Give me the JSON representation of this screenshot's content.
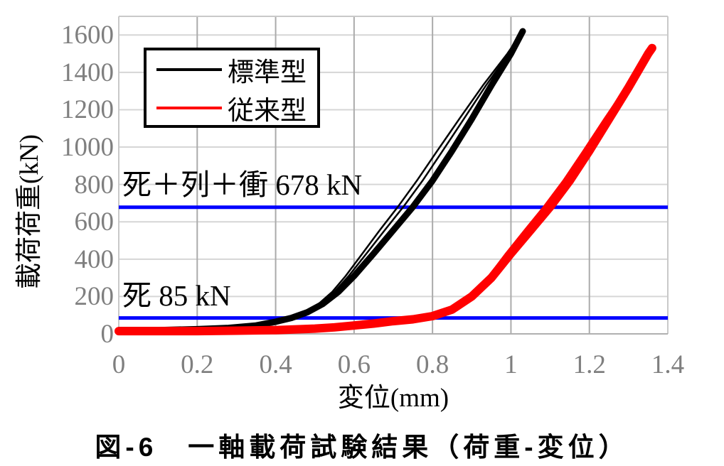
{
  "caption": "図-6　一軸載荷試験結果（荷重-変位）",
  "colors": {
    "grid_horizontal": "#d6d6d6",
    "grid_vertical": "#ababab",
    "plot_border": "#c9c9c9",
    "axis_line": "#b0b0b0",
    "tick_label": "#7f7f7f",
    "reference_line": "#0000ff",
    "series_standard": "#000000",
    "series_conventional": "#ff0000"
  },
  "chart_data": {
    "type": "line",
    "title": "",
    "xlabel": "変位(mm)",
    "ylabel": "載荷荷重(kN)",
    "xlim": [
      0,
      1.4
    ],
    "ylim": [
      0,
      1700
    ],
    "grid": true,
    "legend_position": "top-left-inside",
    "x_ticks": [
      0,
      0.2,
      0.4,
      0.6,
      0.8,
      1.0,
      1.2,
      1.4
    ],
    "x_tick_labels": [
      "0",
      "0.2",
      "0.4",
      "0.6",
      "0.8",
      "1",
      "1.2",
      "1.4"
    ],
    "y_ticks": [
      0,
      200,
      400,
      600,
      800,
      1000,
      1200,
      1400,
      1600
    ],
    "y_tick_labels": [
      "0",
      "200",
      "400",
      "600",
      "800",
      "1000",
      "1200",
      "1400",
      "1600"
    ],
    "reference_lines": [
      {
        "label": "死＋列＋衝 678 kN",
        "value": 678,
        "color": "#0000ff"
      },
      {
        "label": "死 85 kN",
        "value": 85,
        "color": "#0000ff"
      }
    ],
    "series": [
      {
        "name": "標準型",
        "color": "#000000",
        "x": [
          0,
          0.1,
          0.2,
          0.28,
          0.35,
          0.4,
          0.44,
          0.48,
          0.52,
          0.56,
          0.6,
          0.65,
          0.7,
          0.75,
          0.8,
          0.85,
          0.9,
          0.95,
          1.0,
          1.03
        ],
        "y": [
          20,
          20,
          25,
          32,
          45,
          65,
          85,
          115,
          160,
          225,
          310,
          430,
          555,
          680,
          820,
          980,
          1150,
          1330,
          1500,
          1620
        ]
      },
      {
        "name": "従来型",
        "color": "#ff0000",
        "x": [
          0,
          0.1,
          0.2,
          0.3,
          0.4,
          0.5,
          0.55,
          0.6,
          0.65,
          0.7,
          0.75,
          0.8,
          0.85,
          0.9,
          0.95,
          1.0,
          1.05,
          1.1,
          1.15,
          1.2,
          1.25,
          1.3,
          1.35,
          1.36
        ],
        "y": [
          15,
          15,
          15,
          17,
          20,
          28,
          35,
          45,
          55,
          68,
          78,
          95,
          130,
          200,
          300,
          430,
          555,
          680,
          820,
          980,
          1150,
          1320,
          1500,
          1530
        ]
      }
    ]
  }
}
